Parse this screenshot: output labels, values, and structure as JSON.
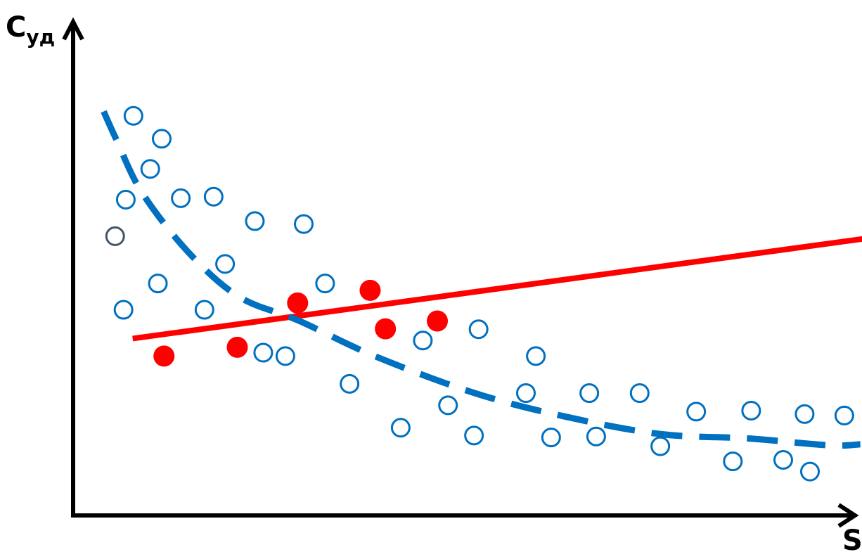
{
  "chart_data": {
    "type": "scatter",
    "title": "",
    "ylabel": "C",
    "ylabel_subscript": "уд",
    "xlabel": "S",
    "xlim": [
      0,
      100
    ],
    "ylim": [
      0,
      100
    ],
    "grid": false,
    "legend": "none",
    "series": [
      {
        "kind": "scatter",
        "marker": "open-circle",
        "color": "#0070c0",
        "points": [
          [
            7.9,
            82.0
          ],
          [
            11.6,
            77.3
          ],
          [
            10.1,
            71.1
          ],
          [
            6.9,
            64.8
          ],
          [
            14.1,
            65.1
          ],
          [
            18.4,
            65.4
          ],
          [
            23.8,
            60.4
          ],
          [
            30.2,
            59.8
          ],
          [
            19.9,
            51.6
          ],
          [
            11.1,
            47.6
          ],
          [
            6.6,
            42.2
          ],
          [
            17.2,
            42.2
          ],
          [
            33.0,
            47.6
          ],
          [
            24.9,
            33.4
          ],
          [
            27.8,
            32.7
          ],
          [
            36.2,
            27.0
          ],
          [
            45.8,
            35.9
          ],
          [
            53.1,
            38.2
          ],
          [
            42.9,
            18.0
          ],
          [
            49.1,
            22.6
          ],
          [
            52.5,
            16.4
          ],
          [
            60.6,
            32.7
          ],
          [
            59.3,
            25.1
          ],
          [
            62.6,
            16.0
          ],
          [
            67.6,
            25.1
          ],
          [
            68.5,
            16.2
          ],
          [
            74.2,
            25.1
          ],
          [
            76.9,
            14.2
          ],
          [
            81.6,
            21.3
          ],
          [
            86.4,
            11.1
          ],
          [
            88.8,
            21.5
          ],
          [
            93.0,
            11.4
          ],
          [
            95.8,
            20.8
          ],
          [
            96.5,
            9.0
          ],
          [
            101.0,
            20.5
          ]
        ]
      },
      {
        "kind": "scatter",
        "marker": "open-circle",
        "color": "#44546a",
        "points": [
          [
            5.5,
            57.3
          ]
        ]
      },
      {
        "kind": "scatter",
        "marker": "filled-circle",
        "color": "#ff0000",
        "points": [
          [
            11.9,
            32.7
          ],
          [
            21.5,
            34.5
          ],
          [
            29.4,
            43.6
          ],
          [
            38.9,
            46.2
          ],
          [
            40.9,
            38.3
          ],
          [
            47.7,
            39.9
          ]
        ]
      },
      {
        "kind": "line",
        "style": "solid",
        "color": "#ff0000",
        "points": [
          [
            7.8,
            36.3
          ],
          [
            104.6,
            57.0
          ]
        ]
      },
      {
        "kind": "curve",
        "style": "dashed",
        "color": "#0070c0",
        "points": [
          [
            4.0,
            82.9
          ],
          [
            5.7,
            77.0
          ],
          [
            9.0,
            66.3
          ],
          [
            15.1,
            54.0
          ],
          [
            21.7,
            44.9
          ],
          [
            29.5,
            40.0
          ],
          [
            39.5,
            32.7
          ],
          [
            52.6,
            25.1
          ],
          [
            64.4,
            20.3
          ],
          [
            76.9,
            16.7
          ],
          [
            88.4,
            15.8
          ],
          [
            98.9,
            14.4
          ],
          [
            103.1,
            14.6
          ]
        ]
      }
    ]
  }
}
